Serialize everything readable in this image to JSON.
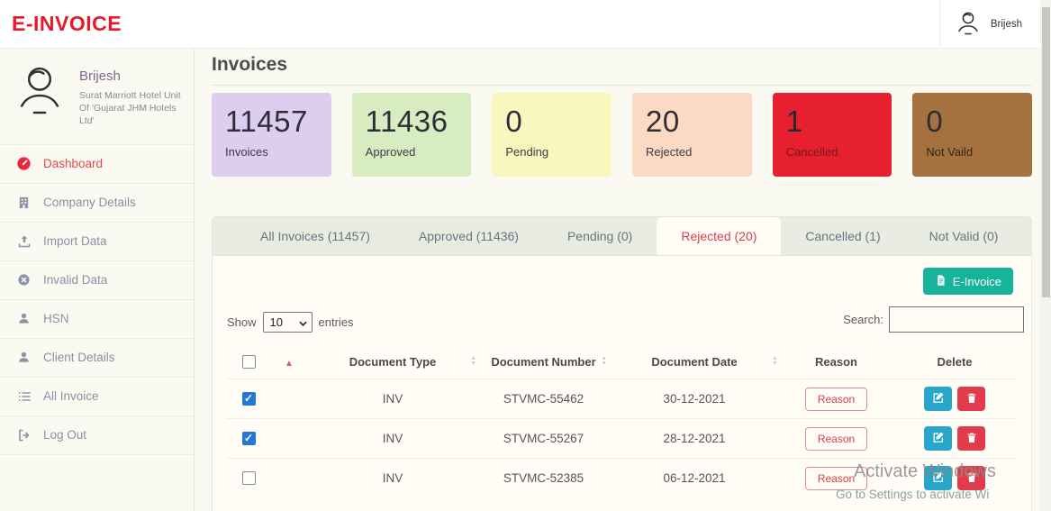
{
  "colors": {
    "brand_red": "#e8192c",
    "einvoice_button_teal": "#16b49a",
    "active_tab_red": "#d6404e",
    "checkbox_blue": "#2478d4",
    "edit_button_blue": "#27a6c9",
    "delete_button_red": "#e23b4e"
  },
  "topbar": {
    "logo": "E-INVOICE",
    "user_name": "Brijesh"
  },
  "sidebar": {
    "profile": {
      "name": "Brijesh",
      "org": "Surat Marriott Hotel Unit Of 'Gujarat JHM Hotels Ltd'"
    },
    "items": [
      {
        "label": "Dashboard",
        "icon": "dashboard",
        "active": true
      },
      {
        "label": "Company Details",
        "icon": "company",
        "active": false
      },
      {
        "label": "Import Data",
        "icon": "import",
        "active": false
      },
      {
        "label": "Invalid Data",
        "icon": "invalid",
        "active": false
      },
      {
        "label": "HSN",
        "icon": "person",
        "active": false
      },
      {
        "label": "Client Details",
        "icon": "person",
        "active": false
      },
      {
        "label": "All Invoice",
        "icon": "list",
        "active": false
      },
      {
        "label": "Log Out",
        "icon": "logout",
        "active": false
      }
    ]
  },
  "main": {
    "title": "Invoices",
    "stat_cards": [
      {
        "value": "11457",
        "label": "Invoices",
        "bg": "#ddcdee",
        "value_color": "#2e2e38",
        "label_color": "#3c3c46"
      },
      {
        "value": "11436",
        "label": "Approved",
        "bg": "#d7edc1",
        "value_color": "#2e2e38",
        "label_color": "#3c3c46"
      },
      {
        "value": "0",
        "label": "Pending",
        "bg": "#faf6c0",
        "value_color": "#2e2e38",
        "label_color": "#3c3c46"
      },
      {
        "value": "20",
        "label": "Rejected",
        "bg": "#fcd9c3",
        "value_color": "#2e2e38",
        "label_color": "#3c3c46"
      },
      {
        "value": "1",
        "label": "Cancelled",
        "bg": "#e6202e",
        "value_color": "#27272f",
        "label_color": "#7c1420"
      },
      {
        "value": "0",
        "label": "Not Vaild",
        "bg": "#a5713f",
        "value_color": "#2d2d35",
        "label_color": "#33251a"
      }
    ],
    "tabs": [
      {
        "label": "All Invoices (11457)",
        "active": false
      },
      {
        "label": "Approved (11436)",
        "active": false
      },
      {
        "label": "Pending (0)",
        "active": false
      },
      {
        "label": "Rejected (20)",
        "active": true
      },
      {
        "label": "Cancelled (1)",
        "active": false
      },
      {
        "label": "Not Valid (0)",
        "active": false
      }
    ],
    "toolbar": {
      "e_invoice_button": "E-Invoice",
      "show_label": "Show",
      "page_size": "10",
      "entries_label": "entries",
      "search_label": "Search:",
      "search_value": ""
    },
    "table": {
      "columns": {
        "type": "Document Type",
        "number": "Document Number",
        "date": "Document Date",
        "reason": "Reason",
        "delete": "Delete"
      },
      "reason_button": "Reason",
      "rows": [
        {
          "checked": true,
          "type": "INV",
          "number": "STVMC-55462",
          "date": "30-12-2021"
        },
        {
          "checked": true,
          "type": "INV",
          "number": "STVMC-55267",
          "date": "28-12-2021"
        },
        {
          "checked": false,
          "type": "INV",
          "number": "STVMC-52385",
          "date": "06-12-2021"
        }
      ]
    }
  },
  "watermark": {
    "line1": "Activate Windows",
    "line2": "Go to Settings to activate Wi"
  }
}
